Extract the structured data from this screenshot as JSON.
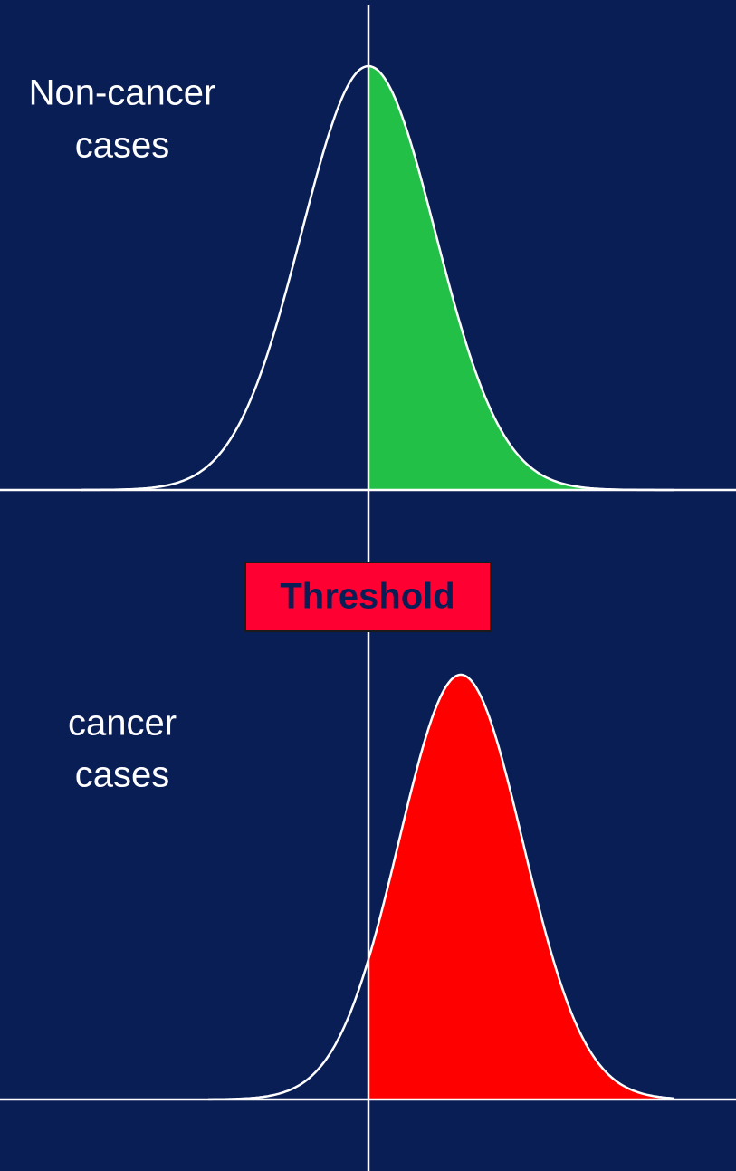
{
  "top_label": [
    "Non-cancer",
    "cases"
  ],
  "bottom_label": [
    "cancer",
    "cases"
  ],
  "threshold": "Threshold"
}
